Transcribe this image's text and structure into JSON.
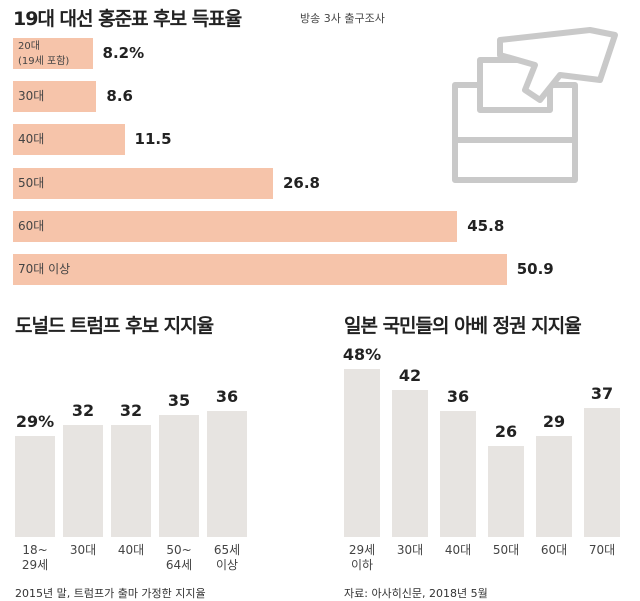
{
  "chart_data": [
    {
      "type": "bar",
      "orientation": "horizontal",
      "title": "19대 대선 홍준표 후보 득표율",
      "subtitle": "방송 3사 출구조사",
      "categories": [
        "20대\n(19세 포함)",
        "30대",
        "40대",
        "50대",
        "60대",
        "70대 이상"
      ],
      "values": [
        8.2,
        8.6,
        11.5,
        26.8,
        45.8,
        50.9
      ],
      "value_labels": [
        "8.2%",
        "8.6",
        "11.5",
        "26.8",
        "45.8",
        "50.9"
      ],
      "color": "#f6c4aa"
    },
    {
      "type": "bar",
      "orientation": "vertical",
      "title": "도널드 트럼프 후보 지지율",
      "categories": [
        "18~\n29세",
        "30대",
        "40대",
        "50~\n64세",
        "65세\n이상"
      ],
      "values": [
        29,
        32,
        32,
        35,
        36
      ],
      "value_labels": [
        "29%",
        "32",
        "32",
        "35",
        "36"
      ],
      "color": "#e7e4e1",
      "note": "2015년 말, 트럼프가 출마 가정한 지지율"
    },
    {
      "type": "bar",
      "orientation": "vertical",
      "title": "일본 국민들의 아베 정권 지지율",
      "categories": [
        "29세\n이하",
        "30대",
        "40대",
        "50대",
        "60대",
        "70대"
      ],
      "values": [
        48,
        42,
        36,
        26,
        29,
        37
      ],
      "value_labels": [
        "48%",
        "42",
        "36",
        "26",
        "29",
        "37"
      ],
      "color": "#e7e4e1",
      "note": "자료: 아사히신문, 2018년 5월"
    }
  ]
}
